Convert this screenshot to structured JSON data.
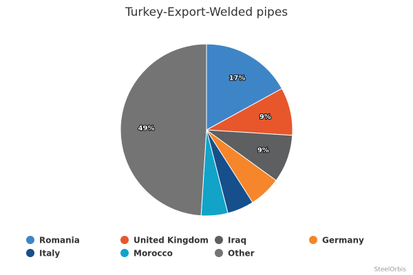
{
  "chart_data": {
    "type": "pie",
    "title": "Turkey-Export-Welded pipes",
    "categories": [
      "Romania",
      "United Kingdom",
      "Iraq",
      "Germany",
      "Italy",
      "Morocco",
      "Other"
    ],
    "values": [
      17,
      9,
      9,
      6,
      5,
      5,
      49
    ],
    "value_labels": [
      "17%",
      "9%",
      "9%",
      null,
      null,
      null,
      "49%"
    ],
    "colors": [
      "#3e85c7",
      "#e8572b",
      "#5e5f61",
      "#f5862b",
      "#164f8b",
      "#12a3c9",
      "#747474"
    ],
    "legend": "bottom",
    "credit": "SteelOrbis"
  }
}
